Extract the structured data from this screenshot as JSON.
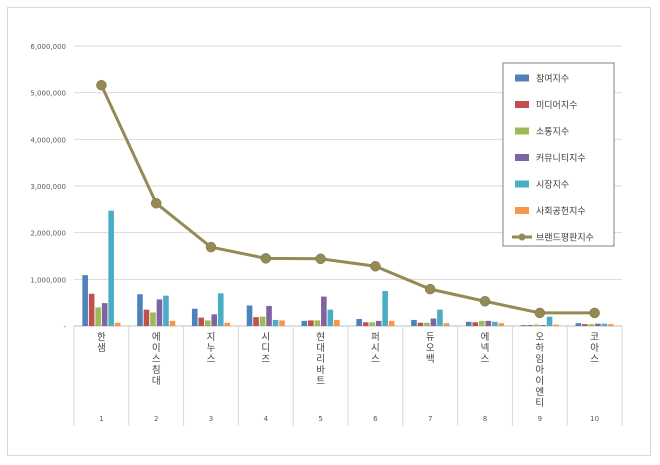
{
  "chart_data": {
    "type": "bar",
    "categories": [
      {
        "rank": "1",
        "name": "한샘"
      },
      {
        "rank": "2",
        "name": "에이스침대"
      },
      {
        "rank": "3",
        "name": "지누스"
      },
      {
        "rank": "4",
        "name": "시디즈"
      },
      {
        "rank": "5",
        "name": "현대리바트"
      },
      {
        "rank": "6",
        "name": "퍼시스"
      },
      {
        "rank": "7",
        "name": "듀오백"
      },
      {
        "rank": "8",
        "name": "에넥스"
      },
      {
        "rank": "9",
        "name": "오하임아이엔티"
      },
      {
        "rank": "10",
        "name": "코아스"
      }
    ],
    "y_ticks": [
      "-",
      "1,000,000",
      "2,000,000",
      "3,000,000",
      "4,000,000",
      "5,000,000",
      "6,000,000"
    ],
    "ylim": [
      0,
      6000000
    ],
    "grid": true,
    "legend_position": "top-right",
    "series": [
      {
        "name": "참여지수",
        "type": "bar",
        "color": "#4f81bd",
        "values": [
          1090000,
          680000,
          370000,
          440000,
          110000,
          150000,
          130000,
          90000,
          20000,
          60000
        ]
      },
      {
        "name": "미디어지수",
        "type": "bar",
        "color": "#c0504d",
        "values": [
          690000,
          350000,
          180000,
          190000,
          120000,
          80000,
          70000,
          80000,
          20000,
          40000
        ]
      },
      {
        "name": "소통지수",
        "type": "bar",
        "color": "#9bbb59",
        "values": [
          400000,
          290000,
          120000,
          200000,
          120000,
          80000,
          70000,
          110000,
          30000,
          40000
        ]
      },
      {
        "name": "커뮤니티지수",
        "type": "bar",
        "color": "#8064a2",
        "values": [
          490000,
          570000,
          250000,
          430000,
          630000,
          110000,
          160000,
          110000,
          20000,
          50000
        ]
      },
      {
        "name": "시장지수",
        "type": "bar",
        "color": "#4bacc6",
        "values": [
          2470000,
          650000,
          700000,
          130000,
          350000,
          750000,
          350000,
          90000,
          200000,
          50000
        ]
      },
      {
        "name": "사회공헌지수",
        "type": "bar",
        "color": "#f79646",
        "values": [
          70000,
          110000,
          70000,
          120000,
          130000,
          110000,
          60000,
          60000,
          30000,
          40000
        ]
      },
      {
        "name": "브랜드평판지수",
        "type": "line",
        "color": "#948a54",
        "values": [
          5160000,
          2630000,
          1690000,
          1450000,
          1440000,
          1280000,
          790000,
          530000,
          280000,
          280000
        ]
      }
    ]
  }
}
